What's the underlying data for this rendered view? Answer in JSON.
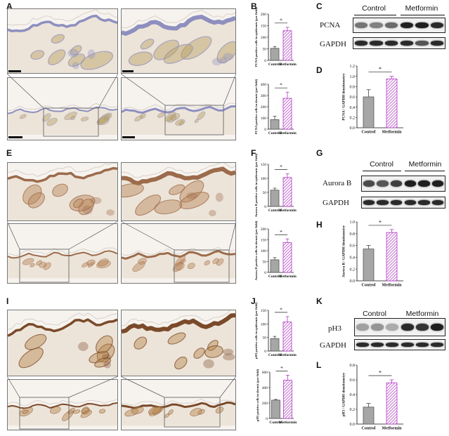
{
  "figure": {
    "panel_labels": {
      "A": "A",
      "B": "B",
      "C": "C",
      "D": "D",
      "E": "E",
      "F": "F",
      "G": "G",
      "H": "H",
      "I": "I",
      "J": "J",
      "K": "K",
      "L": "L"
    },
    "colors": {
      "control_bar": "#a6a6a6",
      "metformin_stroke": "#b13bc4",
      "metformin_hatch": "#b13bc4",
      "sig_line": "#222222"
    },
    "stains": [
      {
        "name": "PCNA",
        "tissue_color": "#8e8fbf",
        "stain_color": "#b8a061"
      },
      {
        "name": "Aurora B",
        "tissue_color": "#9c6b4b",
        "stain_color": "#b88658"
      },
      {
        "name": "pH3",
        "tissue_color": "#7a4a2a",
        "stain_color": "#b9874e"
      }
    ]
  },
  "blots": [
    {
      "target": "PCNA",
      "loading": "GAPDH",
      "group_labels": [
        "Control",
        "Metformin"
      ]
    },
    {
      "target": "Aurora B",
      "loading": "GAPDH",
      "group_labels": [
        "Control",
        "Metformin"
      ]
    },
    {
      "target": "pH3",
      "loading": "GAPDH",
      "group_labels": [
        "Control",
        "Metformin"
      ]
    }
  ],
  "chart_data": [
    {
      "id": "B-top",
      "type": "bar",
      "categories": [
        "Control",
        "Metformin"
      ],
      "values": [
        52,
        128
      ],
      "errors": [
        8,
        15
      ],
      "ylabel": "PCNA positive cells in epidermis (per field)",
      "ylim": [
        0,
        200
      ],
      "ticks": [
        0,
        50,
        100,
        150,
        200
      ],
      "significance": "*"
    },
    {
      "id": "B-bottom",
      "type": "bar",
      "categories": [
        "Control",
        "Metformin"
      ],
      "values": [
        85,
        275
      ],
      "errors": [
        30,
        55
      ],
      "ylabel": "PCNA positive cells in dermis (per field)",
      "ylim": [
        0,
        400
      ],
      "ticks": [
        0,
        100,
        200,
        300,
        400
      ],
      "significance": "*"
    },
    {
      "id": "D",
      "type": "bar",
      "categories": [
        "Control",
        "Metformin"
      ],
      "values": [
        0.6,
        0.95
      ],
      "errors": [
        0.14,
        0.05
      ],
      "ylabel": "PCNA / GAPDH densitometry",
      "ylim": [
        0,
        1.2
      ],
      "ticks": [
        0.0,
        0.2,
        0.4,
        0.6,
        0.8,
        1.0,
        1.2
      ],
      "tick_decimals": 1,
      "significance": "*"
    },
    {
      "id": "F-top",
      "type": "bar",
      "categories": [
        "Control",
        "Metformin"
      ],
      "values": [
        58,
        103
      ],
      "errors": [
        7,
        13
      ],
      "ylabel": "Aurora B positive cells in epidermis (per field)",
      "ylim": [
        0,
        150
      ],
      "ticks": [
        0,
        50,
        100,
        150
      ],
      "significance": "*"
    },
    {
      "id": "F-bottom",
      "type": "bar",
      "categories": [
        "Control",
        "Metformin"
      ],
      "values": [
        58,
        137
      ],
      "errors": [
        10,
        17
      ],
      "ylabel": "Aurora B positive cells in dermis (per field)",
      "ylim": [
        0,
        200
      ],
      "ticks": [
        0,
        50,
        100,
        150,
        200
      ],
      "significance": "*"
    },
    {
      "id": "H",
      "type": "bar",
      "categories": [
        "Control",
        "Metformin"
      ],
      "values": [
        0.54,
        0.82
      ],
      "errors": [
        0.06,
        0.05
      ],
      "ylabel": "Aurora B / GAPDH densitometry",
      "ylim": [
        0,
        1.0
      ],
      "ticks": [
        0.0,
        0.2,
        0.4,
        0.6,
        0.8,
        1.0
      ],
      "tick_decimals": 1,
      "significance": "*"
    },
    {
      "id": "J-top",
      "type": "bar",
      "categories": [
        "Control",
        "Metformin"
      ],
      "values": [
        46,
        107
      ],
      "errors": [
        8,
        20
      ],
      "ylabel": "pH3 positive cells in epidermis (per field)",
      "ylim": [
        0,
        150
      ],
      "ticks": [
        0,
        50,
        100,
        150
      ],
      "significance": "*"
    },
    {
      "id": "J-bottom",
      "type": "bar",
      "categories": [
        "Control",
        "Metformin"
      ],
      "values": [
        237,
        495
      ],
      "errors": [
        10,
        65
      ],
      "ylabel": "pH3 positive cells in dermis (per field)",
      "ylim": [
        0,
        600
      ],
      "ticks": [
        0,
        200,
        400,
        600
      ],
      "significance": "*"
    },
    {
      "id": "L",
      "type": "bar",
      "categories": [
        "Control",
        "Metformin"
      ],
      "values": [
        0.23,
        0.56
      ],
      "errors": [
        0.05,
        0.04
      ],
      "ylabel": "pH3 / GAPDH densitometry",
      "ylim": [
        0,
        0.8
      ],
      "ticks": [
        0.0,
        0.2,
        0.4,
        0.6,
        0.8
      ],
      "tick_decimals": 1,
      "significance": "*"
    }
  ]
}
